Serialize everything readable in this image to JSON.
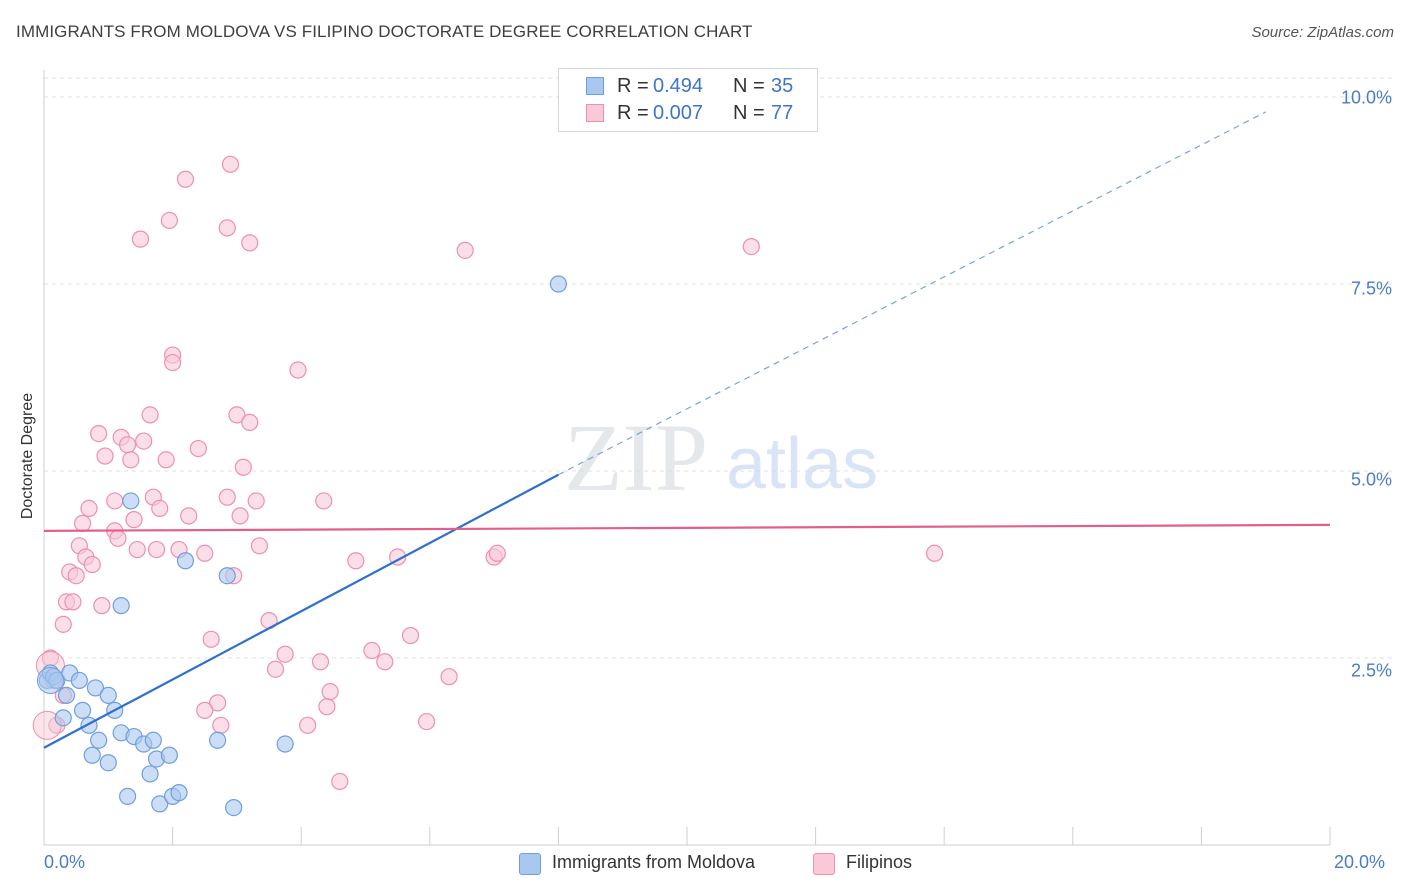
{
  "title": "IMMIGRANTS FROM MOLDOVA VS FILIPINO DOCTORATE DEGREE CORRELATION CHART",
  "source": "Source: ZipAtlas.com",
  "watermark": {
    "zip": "ZIP",
    "atlas": "atlas"
  },
  "legend": {
    "rows": [
      {
        "r_label": "R =",
        "r_value": "0.494",
        "n_label": "N =",
        "n_value": "35",
        "color": "#a9c8f0",
        "border": "#6f9fde"
      },
      {
        "r_label": "R =",
        "r_value": "0.007",
        "n_label": "N =",
        "n_value": "77",
        "color": "#f9c9d8",
        "border": "#ee8faf"
      }
    ]
  },
  "bottom_legend": [
    "Immigrants from Moldova",
    "Filipinos"
  ],
  "chart_data": {
    "type": "scatter",
    "title": "IMMIGRANTS FROM MOLDOVA VS FILIPINO DOCTORATE DEGREE CORRELATION CHART",
    "xlabel": "",
    "ylabel": "Doctorate Degree",
    "xlim": [
      0,
      20
    ],
    "ylim": [
      0,
      10.5
    ],
    "x_ticks": [
      "0.0%",
      "20.0%"
    ],
    "y_ticks": [
      "2.5%",
      "5.0%",
      "7.5%",
      "10.0%"
    ],
    "y_tick_values": [
      2.5,
      5.0,
      7.5,
      10.0
    ],
    "grid": true,
    "legend_position": "top-center",
    "series": [
      {
        "name": "Immigrants from Moldova",
        "color": "#a9c8f0",
        "edge": "#6f9fde",
        "trend": {
          "x0": 0,
          "y0": 1.3,
          "x1": 8.0,
          "y1": 4.95,
          "dashed_to_x": 19,
          "dashed_to_y": 9.8,
          "color": "#2f6fce"
        },
        "points": [
          [
            0.05,
            2.2
          ],
          [
            0.1,
            2.3
          ],
          [
            0.15,
            2.25
          ],
          [
            0.2,
            2.2
          ],
          [
            0.3,
            1.7
          ],
          [
            0.35,
            2.0
          ],
          [
            0.4,
            2.3
          ],
          [
            0.55,
            2.2
          ],
          [
            0.6,
            1.8
          ],
          [
            0.7,
            1.6
          ],
          [
            0.75,
            1.2
          ],
          [
            0.8,
            2.1
          ],
          [
            0.85,
            1.4
          ],
          [
            1.0,
            2.0
          ],
          [
            1.0,
            1.1
          ],
          [
            1.1,
            1.8
          ],
          [
            1.2,
            1.5
          ],
          [
            1.3,
            0.65
          ],
          [
            1.35,
            4.6
          ],
          [
            1.4,
            1.45
          ],
          [
            1.55,
            1.35
          ],
          [
            1.65,
            0.95
          ],
          [
            1.7,
            1.4
          ],
          [
            1.75,
            1.15
          ],
          [
            1.8,
            0.55
          ],
          [
            1.95,
            1.2
          ],
          [
            2.0,
            0.65
          ],
          [
            2.1,
            0.7
          ],
          [
            2.2,
            3.8
          ],
          [
            2.7,
            1.4
          ],
          [
            2.85,
            3.6
          ],
          [
            2.95,
            0.5
          ],
          [
            3.75,
            1.35
          ],
          [
            8.0,
            7.5
          ],
          [
            1.2,
            3.2
          ]
        ]
      },
      {
        "name": "Filipinos",
        "color": "#f9c9d8",
        "edge": "#ee8faf",
        "trend": {
          "x0": 0,
          "y0": 4.2,
          "x1": 20,
          "y1": 4.28,
          "color": "#e25e8c"
        },
        "points": [
          [
            0.1,
            2.5
          ],
          [
            0.15,
            2.2
          ],
          [
            0.2,
            1.6
          ],
          [
            0.3,
            2.0
          ],
          [
            0.3,
            2.95
          ],
          [
            0.35,
            3.25
          ],
          [
            0.4,
            3.65
          ],
          [
            0.45,
            3.25
          ],
          [
            0.5,
            3.6
          ],
          [
            0.55,
            4.0
          ],
          [
            0.6,
            4.3
          ],
          [
            0.65,
            3.85
          ],
          [
            0.7,
            4.5
          ],
          [
            0.75,
            3.75
          ],
          [
            0.85,
            5.5
          ],
          [
            0.9,
            3.2
          ],
          [
            0.95,
            5.2
          ],
          [
            1.1,
            4.2
          ],
          [
            1.1,
            4.6
          ],
          [
            1.15,
            4.1
          ],
          [
            1.2,
            5.45
          ],
          [
            1.3,
            5.35
          ],
          [
            1.35,
            5.15
          ],
          [
            1.4,
            4.35
          ],
          [
            1.45,
            3.95
          ],
          [
            1.5,
            8.1
          ],
          [
            1.55,
            5.4
          ],
          [
            1.65,
            5.75
          ],
          [
            1.7,
            4.65
          ],
          [
            1.75,
            3.95
          ],
          [
            1.8,
            4.5
          ],
          [
            1.9,
            5.15
          ],
          [
            1.95,
            8.35
          ],
          [
            2.0,
            6.55
          ],
          [
            2.0,
            6.45
          ],
          [
            2.1,
            3.95
          ],
          [
            2.2,
            8.9
          ],
          [
            2.25,
            4.4
          ],
          [
            2.4,
            5.3
          ],
          [
            2.5,
            3.9
          ],
          [
            2.6,
            2.75
          ],
          [
            2.7,
            1.9
          ],
          [
            2.75,
            1.6
          ],
          [
            2.85,
            4.65
          ],
          [
            2.85,
            8.25
          ],
          [
            2.9,
            9.1
          ],
          [
            2.95,
            3.6
          ],
          [
            3.0,
            5.75
          ],
          [
            3.05,
            4.4
          ],
          [
            3.1,
            5.05
          ],
          [
            3.2,
            5.65
          ],
          [
            3.2,
            8.05
          ],
          [
            3.3,
            4.6
          ],
          [
            3.35,
            4.0
          ],
          [
            3.5,
            3.0
          ],
          [
            3.6,
            2.35
          ],
          [
            3.75,
            2.55
          ],
          [
            3.95,
            6.35
          ],
          [
            4.1,
            1.6
          ],
          [
            4.3,
            2.45
          ],
          [
            4.35,
            4.6
          ],
          [
            4.4,
            1.85
          ],
          [
            4.45,
            2.05
          ],
          [
            4.6,
            0.85
          ],
          [
            4.85,
            3.8
          ],
          [
            5.1,
            2.6
          ],
          [
            5.3,
            2.45
          ],
          [
            5.5,
            3.85
          ],
          [
            5.7,
            2.8
          ],
          [
            5.95,
            1.65
          ],
          [
            6.3,
            2.25
          ],
          [
            6.55,
            7.95
          ],
          [
            7.0,
            3.85
          ],
          [
            7.05,
            3.9
          ],
          [
            11.0,
            8.0
          ],
          [
            13.85,
            3.9
          ],
          [
            2.5,
            1.8
          ]
        ]
      }
    ]
  }
}
